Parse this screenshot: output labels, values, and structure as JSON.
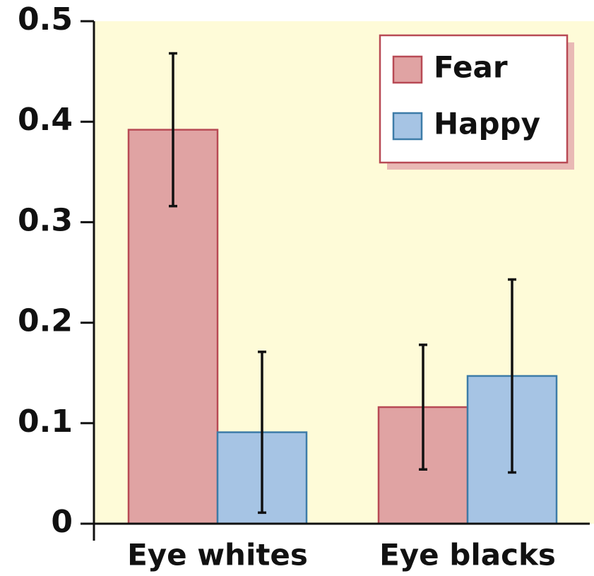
{
  "chart_data": {
    "type": "bar",
    "categories": [
      "Eye whites",
      "Eye blacks"
    ],
    "series": [
      {
        "name": "Fear",
        "color": "#e0a3a3",
        "edge": "#b84a55",
        "values": [
          0.392,
          0.116
        ],
        "errors": [
          0.076,
          0.062
        ]
      },
      {
        "name": "Happy",
        "color": "#a6c4e4",
        "edge": "#3d7ca8",
        "values": [
          0.091,
          0.147
        ],
        "errors": [
          0.08,
          0.096
        ]
      }
    ],
    "ylim": [
      0,
      0.5
    ],
    "yticks": [
      0,
      0.1,
      0.2,
      0.3,
      0.4,
      0.5
    ],
    "background": "#fefbd8",
    "legend": "upper right"
  }
}
